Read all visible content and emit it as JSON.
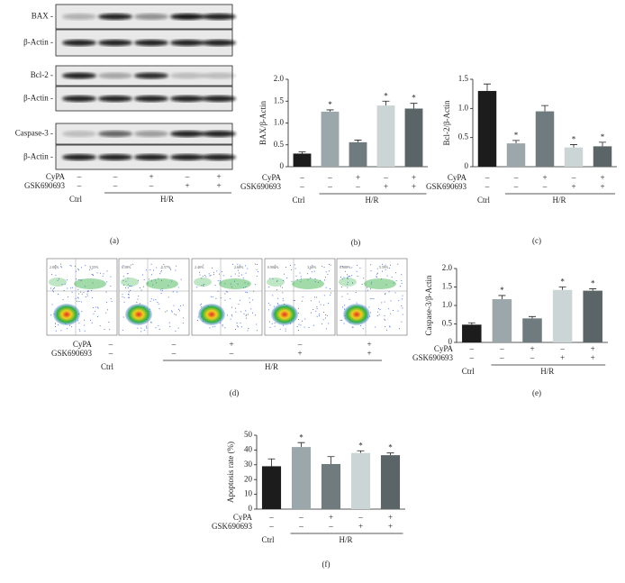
{
  "panel_a": {
    "rows": [
      "BAX -",
      "β-Actin -",
      "Bcl-2 -",
      "β-Actin -",
      "Caspase-3 -",
      "β-Actin -"
    ],
    "treatments": {
      "rows": [
        {
          "name": "CyPA",
          "signs": [
            "–",
            "–",
            "+",
            "–",
            "+"
          ]
        },
        {
          "name": "GSK690693",
          "signs": [
            "–",
            "–",
            "–",
            "+",
            "+"
          ]
        }
      ],
      "ctrl": "Ctrl",
      "group": "H/R"
    },
    "caption": "(a)"
  },
  "panel_d": {
    "plots": [
      {
        "q1": "2.00%",
        "q2": "3.55%"
      },
      {
        "q1": "0.58%",
        "q2": "5.57%"
      },
      {
        "q1": "2.40%",
        "q2": "2.68%"
      },
      {
        "q1": "0.900%",
        "q2": "3.60%"
      },
      {
        "q1": "0.688%",
        "q2": "5.59%"
      }
    ],
    "treatments": {
      "rows": [
        {
          "name": "CyPA",
          "signs": [
            "–",
            "–",
            "+",
            "–",
            "+"
          ]
        },
        {
          "name": "GSK690693",
          "signs": [
            "–",
            "–",
            "–",
            "+",
            "+"
          ]
        }
      ],
      "ctrl": "Ctrl",
      "group": "H/R"
    },
    "caption": "(d)"
  },
  "chart_data": [
    {
      "type": "bar",
      "ylabel": "BAX/β-Actin",
      "values": [
        0.3,
        1.26,
        0.56,
        1.4,
        1.33
      ],
      "errors": [
        0.04,
        0.04,
        0.05,
        0.1,
        0.12
      ],
      "colors": [
        "#1c1c1c",
        "#9ba7ab",
        "#6f7b7f",
        "#cbd5d5",
        "#5b6567"
      ],
      "annotations": [
        {
          "index": 1,
          "text": "*"
        },
        {
          "index": 3,
          "text": "*"
        },
        {
          "index": 4,
          "text": "*"
        }
      ],
      "ylim": [
        0,
        2.0
      ],
      "yticks": [
        0,
        0.5,
        {
          "value": 1.0,
          "label": "1.0"
        },
        1.5,
        {
          "value": 2.0,
          "label": "2.0"
        }
      ],
      "treatments": {
        "rows": [
          {
            "name": "CyPA",
            "signs": [
              "–",
              "–",
              "+",
              "–",
              "+"
            ]
          },
          {
            "name": "GSK690693",
            "signs": [
              "–",
              "–",
              "–",
              "+",
              "+"
            ]
          }
        ],
        "ctrl": "Ctrl",
        "group": "H/R"
      },
      "caption": "(b)"
    },
    {
      "type": "bar",
      "ylabel": "Bcl-2/β-Actin",
      "values": [
        1.3,
        0.4,
        0.95,
        0.33,
        0.35
      ],
      "errors": [
        0.12,
        0.05,
        0.1,
        0.05,
        0.07
      ],
      "colors": [
        "#1c1c1c",
        "#9ba7ab",
        "#6f7b7f",
        "#cbd5d5",
        "#5b6567"
      ],
      "annotations": [
        {
          "index": 1,
          "text": "*"
        },
        {
          "index": 3,
          "text": "*"
        },
        {
          "index": 4,
          "text": "*"
        }
      ],
      "ylim": [
        0,
        1.5
      ],
      "yticks": [
        0,
        0.5,
        {
          "value": 1.0,
          "label": "1.0"
        },
        1.5
      ],
      "treatments": {
        "rows": [
          {
            "name": "CyPA",
            "signs": [
              "–",
              "–",
              "+",
              "–",
              "+"
            ]
          },
          {
            "name": "GSK690693",
            "signs": [
              "–",
              "–",
              "–",
              "+",
              "+"
            ]
          }
        ],
        "ctrl": "Ctrl",
        "group": "H/R"
      },
      "caption": "(c)"
    },
    {
      "type": "bar",
      "ylabel": "Caspase-3/β-Actin",
      "values": [
        0.48,
        1.17,
        0.65,
        1.42,
        1.4
      ],
      "errors": [
        0.05,
        0.1,
        0.05,
        0.08,
        0.05
      ],
      "colors": [
        "#1c1c1c",
        "#9ba7ab",
        "#6f7b7f",
        "#cbd5d5",
        "#5b6567"
      ],
      "annotations": [
        {
          "index": 1,
          "text": "*"
        },
        {
          "index": 3,
          "text": "*"
        },
        {
          "index": 4,
          "text": "*"
        }
      ],
      "ylim": [
        0,
        2.0
      ],
      "yticks": [
        0,
        0.5,
        {
          "value": 1.0,
          "label": "1.0"
        },
        1.5,
        {
          "value": 2.0,
          "label": "2.0"
        }
      ],
      "treatments": {
        "rows": [
          {
            "name": "CyPA",
            "signs": [
              "–",
              "–",
              "+",
              "–",
              "+"
            ]
          },
          {
            "name": "GSK690693",
            "signs": [
              "–",
              "–",
              "–",
              "+",
              "+"
            ]
          }
        ],
        "ctrl": "Ctrl",
        "group": "H/R"
      },
      "caption": "(e)"
    },
    {
      "type": "bar",
      "ylabel": "Apoptosis rate (%)",
      "values": [
        29,
        42,
        30.5,
        38,
        36.5
      ],
      "errors": [
        5,
        3,
        5,
        1.5,
        1.5
      ],
      "colors": [
        "#1c1c1c",
        "#9ba7ab",
        "#6f7b7f",
        "#cbd5d5",
        "#5b6567"
      ],
      "annotations": [
        {
          "index": 1,
          "text": "*"
        },
        {
          "index": 3,
          "text": "*"
        },
        {
          "index": 4,
          "text": "*"
        }
      ],
      "ylim": [
        0,
        50
      ],
      "yticks": [
        0,
        10,
        20,
        30,
        40,
        50
      ],
      "treatments": {
        "rows": [
          {
            "name": "CyPA",
            "signs": [
              "–",
              "–",
              "+",
              "–",
              "+"
            ]
          },
          {
            "name": "GSK690693",
            "signs": [
              "–",
              "–",
              "–",
              "+",
              "+"
            ]
          }
        ],
        "ctrl": "Ctrl",
        "group": "H/R"
      },
      "caption": "(f)"
    }
  ]
}
